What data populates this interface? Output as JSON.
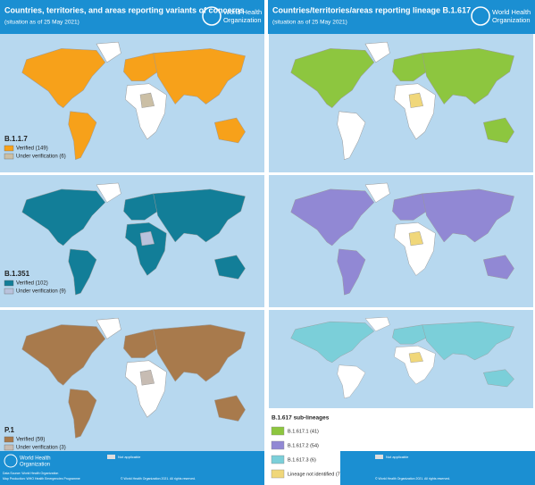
{
  "left_header": {
    "title": "Countries, territories, and areas reporting variants of concerns",
    "subtitle": "(situation as of 25 May 2021)",
    "org": [
      "World Health",
      "Organization"
    ]
  },
  "right_header": {
    "title": "Countries/territories/areas reporting lineage B.1.617",
    "subtitle": "(situation as of 25 May 2021)",
    "org": [
      "World Health",
      "Organization"
    ]
  },
  "left_panels": [
    {
      "label": "B.1.1.7",
      "legend": [
        {
          "text": "Verified (149)",
          "color": "#f7a11a"
        },
        {
          "text": "Under verification (6)",
          "color": "#cbbfa5"
        }
      ]
    },
    {
      "label": "B.1.351",
      "legend": [
        {
          "text": "Verified (102)",
          "color": "#127e98"
        },
        {
          "text": "Under verification (9)",
          "color": "#b9c2dc"
        }
      ]
    },
    {
      "label": "P.1",
      "legend": [
        {
          "text": "Verified (59)",
          "color": "#a87a4c"
        },
        {
          "text": "Under verification (3)",
          "color": "#c7bcb3"
        }
      ]
    }
  ],
  "right_legend": {
    "title": "B.1.617 sub-lineages",
    "items": [
      {
        "text": "B.1.617.1 (41)",
        "color": "#8dc63f"
      },
      {
        "text": "B.1.617.2 (54)",
        "color": "#9188d4"
      },
      {
        "text": "B.1.617.3 (6)",
        "color": "#7bcfd9"
      },
      {
        "text": "Lineage not identified (7)",
        "color": "#f0d77a"
      }
    ]
  },
  "footer_left": {
    "org": [
      "World Health",
      "Organization"
    ],
    "not_applicable": "Not applicable",
    "source": "Data Source: World Health Organization",
    "production": "Map Production: WHO Health Emergencies Programme",
    "copyright": "© World Health Organization 2021. All rights reserved."
  },
  "footer_right": {
    "not_applicable": "Not applicable",
    "copyright": "© World Health Organization 2021. All rights reserved."
  }
}
